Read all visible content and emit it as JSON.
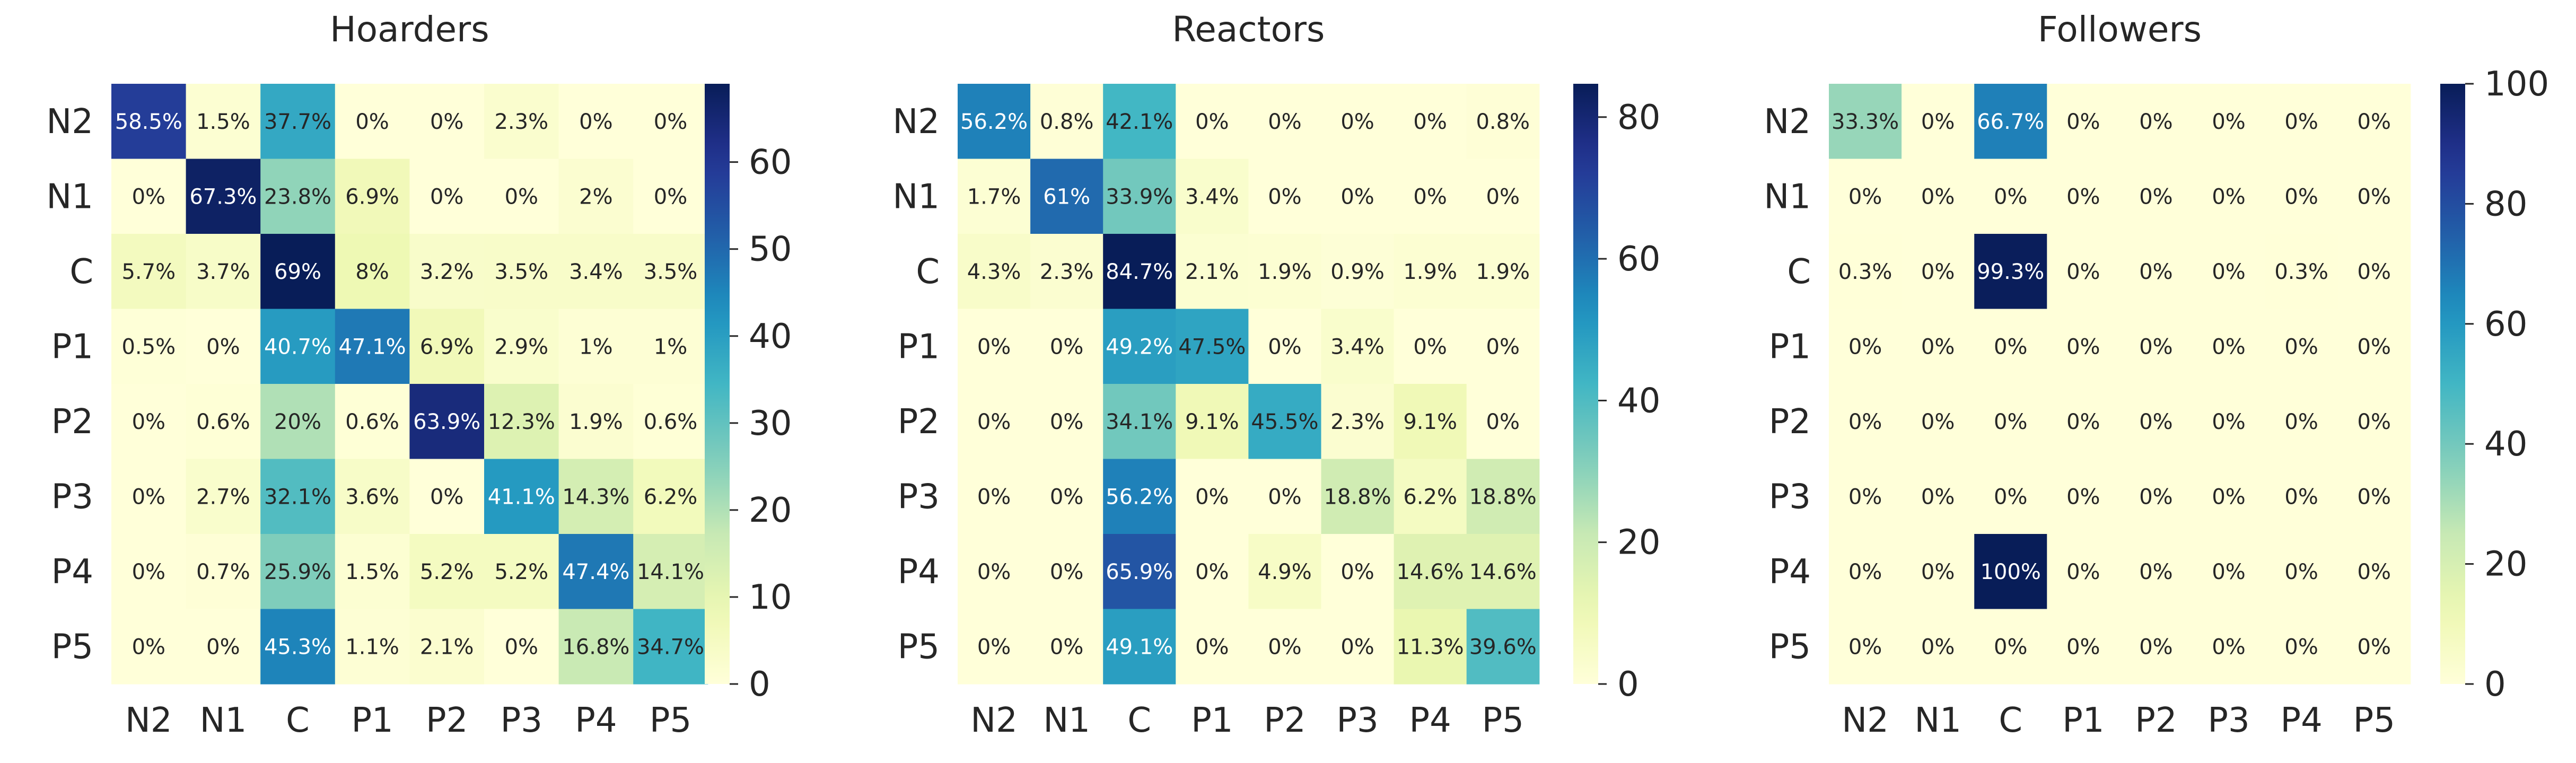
{
  "chart_data": [
    {
      "type": "heatmap",
      "title": "Hoarders",
      "rows": [
        "N2",
        "N1",
        "C",
        "P1",
        "P2",
        "P3",
        "P4",
        "P5"
      ],
      "cols": [
        "N2",
        "N1",
        "C",
        "P1",
        "P2",
        "P3",
        "P4",
        "P5"
      ],
      "values": [
        [
          58.5,
          1.5,
          37.7,
          0,
          0,
          2.3,
          0,
          0
        ],
        [
          0,
          67.3,
          23.8,
          6.9,
          0,
          0,
          2,
          0
        ],
        [
          5.7,
          3.7,
          69,
          8,
          3.2,
          3.5,
          3.4,
          3.5
        ],
        [
          0.5,
          0,
          40.7,
          47.1,
          6.9,
          2.9,
          1,
          1
        ],
        [
          0,
          0.6,
          20,
          0.6,
          63.9,
          12.3,
          1.9,
          0.6
        ],
        [
          0,
          2.7,
          32.1,
          3.6,
          0,
          41.1,
          14.3,
          6.2
        ],
        [
          0,
          0.7,
          25.9,
          1.5,
          5.2,
          5.2,
          47.4,
          14.1
        ],
        [
          0,
          0,
          45.3,
          1.1,
          2.1,
          0,
          16.8,
          34.7
        ]
      ],
      "labels": [
        [
          "58.5%",
          "1.5%",
          "37.7%",
          "0%",
          "0%",
          "2.3%",
          "0%",
          "0%"
        ],
        [
          "0%",
          "67.3%",
          "23.8%",
          "6.9%",
          "0%",
          "0%",
          "2%",
          "0%"
        ],
        [
          "5.7%",
          "3.7%",
          "69%",
          "8%",
          "3.2%",
          "3.5%",
          "3.4%",
          "3.5%"
        ],
        [
          "0.5%",
          "0%",
          "40.7%",
          "47.1%",
          "6.9%",
          "2.9%",
          "1%",
          "1%"
        ],
        [
          "0%",
          "0.6%",
          "20%",
          "0.6%",
          "63.9%",
          "12.3%",
          "1.9%",
          "0.6%"
        ],
        [
          "0%",
          "2.7%",
          "32.1%",
          "3.6%",
          "0%",
          "41.1%",
          "14.3%",
          "6.2%"
        ],
        [
          "0%",
          "0.7%",
          "25.9%",
          "1.5%",
          "5.2%",
          "5.2%",
          "47.4%",
          "14.1%"
        ],
        [
          "0%",
          "0%",
          "45.3%",
          "1.1%",
          "2.1%",
          "0%",
          "16.8%",
          "34.7%"
        ]
      ],
      "vmin": 0,
      "vmax": 69,
      "colorbar_ticks": [
        0,
        10,
        20,
        30,
        40,
        50,
        60
      ],
      "colorbar_tick_labels": [
        "0",
        "10",
        "20",
        "30",
        "40",
        "50",
        "60"
      ],
      "colormap": "YlGnBu"
    },
    {
      "type": "heatmap",
      "title": "Reactors",
      "rows": [
        "N2",
        "N1",
        "C",
        "P1",
        "P2",
        "P3",
        "P4",
        "P5"
      ],
      "cols": [
        "N2",
        "N1",
        "C",
        "P1",
        "P2",
        "P3",
        "P4",
        "P5"
      ],
      "values": [
        [
          56.2,
          0.8,
          42.1,
          0,
          0,
          0,
          0,
          0.8
        ],
        [
          1.7,
          61,
          33.9,
          3.4,
          0,
          0,
          0,
          0
        ],
        [
          4.3,
          2.3,
          84.7,
          2.1,
          1.9,
          0.9,
          1.9,
          1.9
        ],
        [
          0,
          0,
          49.2,
          47.5,
          0,
          3.4,
          0,
          0
        ],
        [
          0,
          0,
          34.1,
          9.1,
          45.5,
          2.3,
          9.1,
          0
        ],
        [
          0,
          0,
          56.2,
          0,
          0,
          18.8,
          6.2,
          18.8
        ],
        [
          0,
          0,
          65.9,
          0,
          4.9,
          0,
          14.6,
          14.6
        ],
        [
          0,
          0,
          49.1,
          0,
          0,
          0,
          11.3,
          39.6
        ]
      ],
      "labels": [
        [
          "56.2%",
          "0.8%",
          "42.1%",
          "0%",
          "0%",
          "0%",
          "0%",
          "0.8%"
        ],
        [
          "1.7%",
          "61%",
          "33.9%",
          "3.4%",
          "0%",
          "0%",
          "0%",
          "0%"
        ],
        [
          "4.3%",
          "2.3%",
          "84.7%",
          "2.1%",
          "1.9%",
          "0.9%",
          "1.9%",
          "1.9%"
        ],
        [
          "0%",
          "0%",
          "49.2%",
          "47.5%",
          "0%",
          "3.4%",
          "0%",
          "0%"
        ],
        [
          "0%",
          "0%",
          "34.1%",
          "9.1%",
          "45.5%",
          "2.3%",
          "9.1%",
          "0%"
        ],
        [
          "0%",
          "0%",
          "56.2%",
          "0%",
          "0%",
          "18.8%",
          "6.2%",
          "18.8%"
        ],
        [
          "0%",
          "0%",
          "65.9%",
          "0%",
          "4.9%",
          "0%",
          "14.6%",
          "14.6%"
        ],
        [
          "0%",
          "0%",
          "49.1%",
          "0%",
          "0%",
          "0%",
          "11.3%",
          "39.6%"
        ]
      ],
      "vmin": 0,
      "vmax": 84.7,
      "colorbar_ticks": [
        0,
        20,
        40,
        60,
        80
      ],
      "colorbar_tick_labels": [
        "0",
        "20",
        "40",
        "60",
        "80"
      ],
      "colormap": "YlGnBu"
    },
    {
      "type": "heatmap",
      "title": "Followers",
      "rows": [
        "N2",
        "N1",
        "C",
        "P1",
        "P2",
        "P3",
        "P4",
        "P5"
      ],
      "cols": [
        "N2",
        "N1",
        "C",
        "P1",
        "P2",
        "P3",
        "P4",
        "P5"
      ],
      "values": [
        [
          33.3,
          0,
          66.7,
          0,
          0,
          0,
          0,
          0
        ],
        [
          0,
          0,
          0,
          0,
          0,
          0,
          0,
          0
        ],
        [
          0.3,
          0,
          99.3,
          0,
          0,
          0,
          0.3,
          0
        ],
        [
          0,
          0,
          0,
          0,
          0,
          0,
          0,
          0
        ],
        [
          0,
          0,
          0,
          0,
          0,
          0,
          0,
          0
        ],
        [
          0,
          0,
          0,
          0,
          0,
          0,
          0,
          0
        ],
        [
          0,
          0,
          100,
          0,
          0,
          0,
          0,
          0
        ],
        [
          0,
          0,
          0,
          0,
          0,
          0,
          0,
          0
        ]
      ],
      "labels": [
        [
          "33.3%",
          "0%",
          "66.7%",
          "0%",
          "0%",
          "0%",
          "0%",
          "0%"
        ],
        [
          "0%",
          "0%",
          "0%",
          "0%",
          "0%",
          "0%",
          "0%",
          "0%"
        ],
        [
          "0.3%",
          "0%",
          "99.3%",
          "0%",
          "0%",
          "0%",
          "0.3%",
          "0%"
        ],
        [
          "0%",
          "0%",
          "0%",
          "0%",
          "0%",
          "0%",
          "0%",
          "0%"
        ],
        [
          "0%",
          "0%",
          "0%",
          "0%",
          "0%",
          "0%",
          "0%",
          "0%"
        ],
        [
          "0%",
          "0%",
          "0%",
          "0%",
          "0%",
          "0%",
          "0%",
          "0%"
        ],
        [
          "0%",
          "0%",
          "100%",
          "0%",
          "0%",
          "0%",
          "0%",
          "0%"
        ],
        [
          "0%",
          "0%",
          "0%",
          "0%",
          "0%",
          "0%",
          "0%",
          "0%"
        ]
      ],
      "vmin": 0,
      "vmax": 100,
      "colorbar_ticks": [
        0,
        20,
        40,
        60,
        80,
        100
      ],
      "colorbar_tick_labels": [
        "0",
        "20",
        "40",
        "60",
        "80",
        "100"
      ],
      "colormap": "YlGnBu"
    }
  ]
}
